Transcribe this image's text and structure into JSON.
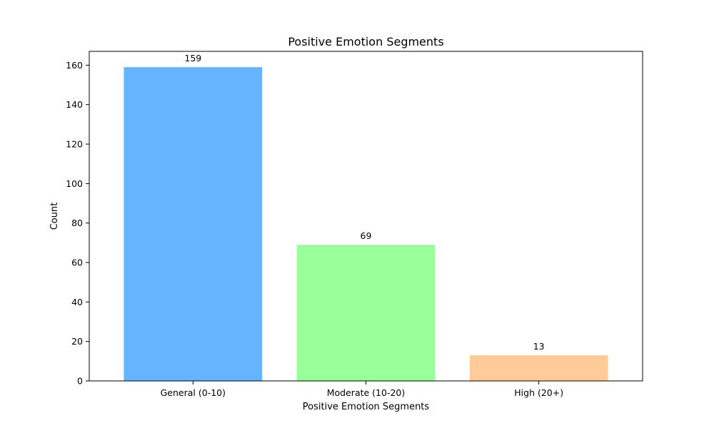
{
  "chart_data": {
    "type": "bar",
    "title": "Positive Emotion Segments",
    "xlabel": "Positive Emotion Segments",
    "ylabel": "Count",
    "categories": [
      "General (0-10)",
      "Moderate (10-20)",
      "High (20+)"
    ],
    "values": [
      159,
      69,
      13
    ],
    "data_labels": [
      "159",
      "69",
      "13"
    ],
    "colors": [
      "#66b3ff",
      "#99ff99",
      "#ffcc99"
    ],
    "ylim": [
      0,
      167
    ],
    "yticks": [
      0,
      20,
      40,
      60,
      80,
      100,
      120,
      140,
      160
    ],
    "ytick_labels": [
      "0",
      "20",
      "40",
      "60",
      "80",
      "100",
      "120",
      "140",
      "160"
    ],
    "grid": false,
    "legend": "none"
  }
}
